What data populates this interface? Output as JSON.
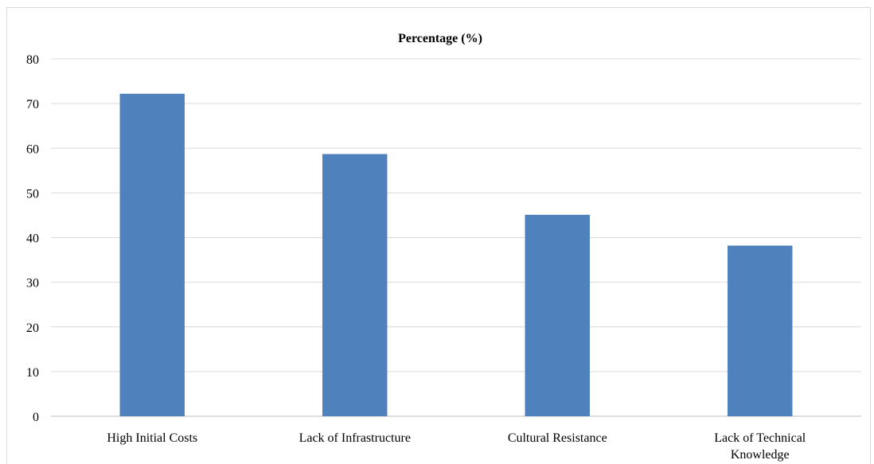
{
  "chart_data": {
    "type": "bar",
    "title": "Percentage (%)",
    "xlabel": "",
    "ylabel": "",
    "categories": [
      [
        "High Initial Costs"
      ],
      [
        "Lack of Infrastructure"
      ],
      [
        "Cultural Resistance"
      ],
      [
        "Lack of Technical",
        "Knowledge"
      ]
    ],
    "values": [
      72.2,
      58.7,
      45.1,
      38.2
    ],
    "ylim": [
      0,
      80
    ],
    "yticks": [
      "0",
      "10",
      "20",
      "30",
      "40",
      "50",
      "60",
      "70",
      "80"
    ],
    "grid": true,
    "legend": "none",
    "bar_color": "#4f81bd"
  }
}
